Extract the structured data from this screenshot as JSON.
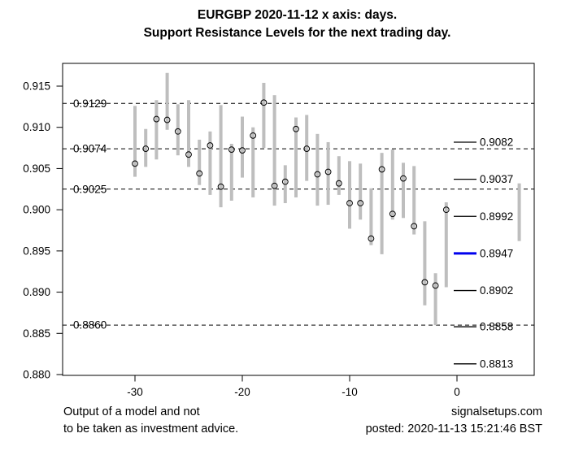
{
  "title": {
    "line1": "EURGBP 2020-11-12 x axis: days.",
    "line2": "Support Resistance Levels for the next trading day."
  },
  "footer": {
    "disclaimer_line1": "Output of a model and not",
    "disclaimer_line2": "to be taken as investment advice.",
    "site": "signalsetups.com",
    "posted": "posted: 2020-11-13 15:21:46 BST"
  },
  "chart_data": {
    "type": "bar",
    "subtype": "high-low-range-bars-with-open-circle-close-markers",
    "title": "EURGBP 2020-11-12 Support Resistance Levels",
    "xlabel": "days",
    "ylabel": "",
    "grid": false,
    "x_ticks": [
      -30,
      -20,
      -10,
      0
    ],
    "y_ticks": [
      0.88,
      0.885,
      0.89,
      0.895,
      0.9,
      0.905,
      0.91,
      0.915
    ],
    "ylim": [
      0.8798,
      0.9178
    ],
    "xlim": [
      -36.7,
      7.2
    ],
    "bars": [
      {
        "x": -30,
        "low": 0.904,
        "high": 0.9126,
        "close": 0.9056
      },
      {
        "x": -29,
        "low": 0.9052,
        "high": 0.9098,
        "close": 0.9074
      },
      {
        "x": -28,
        "low": 0.9061,
        "high": 0.9133,
        "close": 0.911
      },
      {
        "x": -27,
        "low": 0.9097,
        "high": 0.9166,
        "close": 0.9109
      },
      {
        "x": -26,
        "low": 0.9066,
        "high": 0.9128,
        "close": 0.9095
      },
      {
        "x": -25,
        "low": 0.9052,
        "high": 0.9133,
        "close": 0.9067
      },
      {
        "x": -24,
        "low": 0.903,
        "high": 0.9085,
        "close": 0.9044
      },
      {
        "x": -23,
        "low": 0.9018,
        "high": 0.9095,
        "close": 0.9078
      },
      {
        "x": -22,
        "low": 0.9003,
        "high": 0.9127,
        "close": 0.9028
      },
      {
        "x": -21,
        "low": 0.9011,
        "high": 0.908,
        "close": 0.9073
      },
      {
        "x": -20,
        "low": 0.9039,
        "high": 0.9113,
        "close": 0.9072
      },
      {
        "x": -19,
        "low": 0.9015,
        "high": 0.91,
        "close": 0.909
      },
      {
        "x": -18,
        "low": 0.9075,
        "high": 0.9154,
        "close": 0.913
      },
      {
        "x": -17,
        "low": 0.9005,
        "high": 0.9139,
        "close": 0.9029
      },
      {
        "x": -16,
        "low": 0.9008,
        "high": 0.9054,
        "close": 0.9034
      },
      {
        "x": -15,
        "low": 0.9015,
        "high": 0.9112,
        "close": 0.9098
      },
      {
        "x": -14,
        "low": 0.9035,
        "high": 0.9115,
        "close": 0.9074
      },
      {
        "x": -13,
        "low": 0.9005,
        "high": 0.9092,
        "close": 0.9043
      },
      {
        "x": -12,
        "low": 0.9006,
        "high": 0.9082,
        "close": 0.9046
      },
      {
        "x": -11,
        "low": 0.9018,
        "high": 0.9065,
        "close": 0.9032
      },
      {
        "x": -10,
        "low": 0.8977,
        "high": 0.9059,
        "close": 0.9008
      },
      {
        "x": -9,
        "low": 0.8988,
        "high": 0.9056,
        "close": 0.9008
      },
      {
        "x": -8,
        "low": 0.8957,
        "high": 0.9026,
        "close": 0.8965
      },
      {
        "x": -7,
        "low": 0.8946,
        "high": 0.9069,
        "close": 0.9049
      },
      {
        "x": -6,
        "low": 0.8988,
        "high": 0.9073,
        "close": 0.8995
      },
      {
        "x": -5,
        "low": 0.899,
        "high": 0.9057,
        "close": 0.9038
      },
      {
        "x": -4,
        "low": 0.897,
        "high": 0.9053,
        "close": 0.898
      },
      {
        "x": -3,
        "low": 0.8884,
        "high": 0.8986,
        "close": 0.8912
      },
      {
        "x": -2,
        "low": 0.886,
        "high": 0.8923,
        "close": 0.8908
      },
      {
        "x": -1,
        "low": 0.8906,
        "high": 0.9009,
        "close": 0.9
      }
    ],
    "forecast_bar": {
      "x": 5.8,
      "low": 0.8962,
      "high": 0.9032
    },
    "dashed_levels": [
      {
        "value": 0.9129,
        "label": "0.9129"
      },
      {
        "value": 0.9074,
        "label": "0.9074"
      },
      {
        "value": 0.9025,
        "label": "0.9025"
      },
      {
        "value": 0.886,
        "label": "0.8860"
      }
    ],
    "right_levels": [
      {
        "value": 0.9082,
        "label": "0.9082",
        "color": "#000000",
        "emphasis": false
      },
      {
        "value": 0.9037,
        "label": "0.9037",
        "color": "#000000",
        "emphasis": false
      },
      {
        "value": 0.8992,
        "label": "0.8992",
        "color": "#000000",
        "emphasis": false
      },
      {
        "value": 0.8947,
        "label": "0.8947",
        "color": "#0000EE",
        "emphasis": true
      },
      {
        "value": 0.8902,
        "label": "0.8902",
        "color": "#000000",
        "emphasis": false
      },
      {
        "value": 0.8858,
        "label": "0.8858",
        "color": "#000000",
        "emphasis": false
      },
      {
        "value": 0.8813,
        "label": "0.8813",
        "color": "#000000",
        "emphasis": false
      }
    ],
    "legend_position": "right-inside",
    "colors": {
      "range_bar": "#BEBEBE",
      "close_marker": "#000000",
      "axis": "#000000",
      "emphasis_level": "#0000EE",
      "background": "#FFFFFF"
    }
  }
}
